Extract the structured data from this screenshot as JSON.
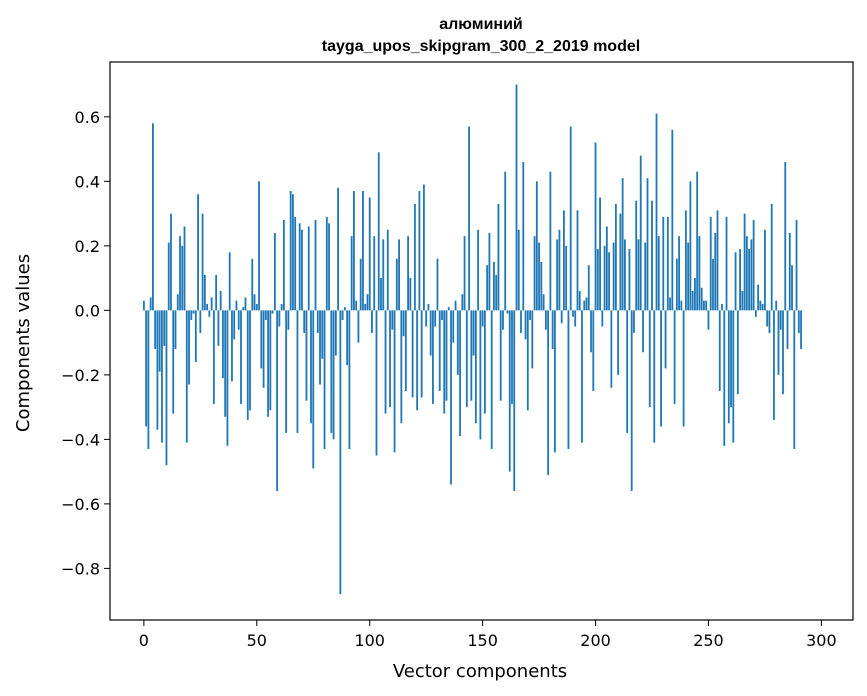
{
  "chart_data": {
    "type": "bar",
    "title": "алюминий",
    "subtitle": "tayga_upos_skipgram_300_2_2019 model",
    "xlabel": "Vector components",
    "ylabel": "Components values",
    "xlim": [
      -15,
      314
    ],
    "ylim": [
      -0.96,
      0.77
    ],
    "x_ticks": [
      0,
      50,
      100,
      150,
      200,
      250,
      300
    ],
    "x_tick_labels": [
      "0",
      "50",
      "100",
      "150",
      "200",
      "250",
      "300"
    ],
    "y_ticks": [
      -0.8,
      -0.6,
      -0.4,
      -0.2,
      0.0,
      0.2,
      0.4,
      0.6
    ],
    "y_tick_labels": [
      "−0.8",
      "−0.6",
      "−0.4",
      "−0.2",
      "0.0",
      "0.2",
      "0.4",
      "0.6"
    ],
    "grid": false,
    "bar_color": "#1f77b4",
    "values": [
      0.03,
      -0.36,
      -0.43,
      0.04,
      0.58,
      -0.12,
      -0.37,
      -0.19,
      -0.41,
      -0.11,
      -0.48,
      0.21,
      0.3,
      -0.32,
      -0.12,
      0.05,
      0.23,
      0.2,
      0.26,
      -0.41,
      -0.23,
      -0.03,
      -0.01,
      -0.16,
      0.36,
      -0.07,
      0.3,
      0.11,
      0.02,
      -0.02,
      0.04,
      -0.29,
      0.11,
      -0.11,
      0.06,
      -0.21,
      -0.33,
      -0.42,
      0.18,
      -0.22,
      -0.09,
      0.03,
      -0.06,
      -0.29,
      0.01,
      0.04,
      -0.34,
      -0.31,
      0.16,
      0.05,
      0.02,
      0.4,
      -0.18,
      -0.24,
      -0.03,
      -0.33,
      -0.31,
      -0.01,
      0.24,
      -0.56,
      -0.05,
      0.02,
      0.28,
      -0.38,
      -0.06,
      0.37,
      0.36,
      0.29,
      -0.38,
      0.27,
      0.25,
      -0.07,
      -0.28,
      0.26,
      -0.35,
      -0.49,
      0.28,
      -0.07,
      -0.23,
      -0.15,
      -0.43,
      0.29,
      0.27,
      -0.38,
      -0.4,
      -0.14,
      0.38,
      -0.88,
      -0.03,
      0.01,
      -0.17,
      -0.43,
      0.23,
      0.37,
      0.03,
      -0.1,
      0.16,
      0.37,
      0.02,
      0.05,
      0.35,
      -0.07,
      0.23,
      -0.45,
      0.49,
      0.1,
      0.22,
      -0.32,
      0.25,
      -0.3,
      -0.06,
      -0.44,
      0.16,
      0.22,
      -0.35,
      -0.08,
      -0.25,
      0.23,
      0.1,
      -0.27,
      0.33,
      -0.31,
      0.37,
      -0.27,
      0.39,
      -0.05,
      0.02,
      -0.14,
      -0.29,
      -0.05,
      0.16,
      -0.25,
      -0.03,
      -0.32,
      -0.28,
      0.01,
      -0.54,
      -0.1,
      0.03,
      -0.2,
      -0.39,
      0.05,
      0.23,
      -0.3,
      0.57,
      -0.28,
      -0.14,
      -0.35,
      0.25,
      -0.4,
      -0.05,
      -0.32,
      0.14,
      0.24,
      -0.43,
      0.15,
      0.11,
      0.33,
      -0.28,
      -0.06,
      0.43,
      -0.01,
      -0.5,
      -0.29,
      -0.56,
      0.7,
      0.25,
      -0.07,
      0.46,
      -0.09,
      -0.31,
      -0.03,
      -0.18,
      0.23,
      0.4,
      0.21,
      0.15,
      0.05,
      -0.06,
      -0.51,
      0.43,
      -0.12,
      -0.44,
      0.22,
      0.25,
      -0.04,
      0.31,
      0.2,
      -0.43,
      0.57,
      -0.02,
      -0.05,
      0.31,
      0.06,
      -0.41,
      0.03,
      0.04,
      0.14,
      -0.13,
      -0.25,
      0.52,
      0.19,
      0.35,
      -0.05,
      0.2,
      0.26,
      0.18,
      -0.24,
      0.21,
      0.33,
      -0.2,
      0.3,
      0.41,
      0.22,
      -0.38,
      0.19,
      -0.56,
      -0.07,
      0.34,
      0.22,
      0.48,
      -0.13,
      0.21,
      0.41,
      -0.3,
      0.34,
      -0.41,
      0.61,
      0.23,
      -0.36,
      0.29,
      -0.18,
      0.29,
      0.04,
      0.56,
      -0.29,
      0.16,
      0.23,
      0.03,
      -0.36,
      0.31,
      0.21,
      0.4,
      0.06,
      0.1,
      0.43,
      0.23,
      0.07,
      0.03,
      0.03,
      -0.06,
      0.29,
      0.16,
      0.24,
      0.31,
      -0.25,
      0.02,
      -0.42,
      0.29,
      -0.35,
      -0.3,
      -0.41,
      0.18,
      -0.26,
      0.19,
      0.06,
      0.3,
      0.23,
      0.19,
      0.22,
      0.28,
      -0.02,
      0.08,
      0.03,
      0.02,
      0.25,
      -0.05,
      -0.07,
      0.33,
      -0.34,
      0.03,
      -0.2,
      -0.06,
      -0.26,
      0.46,
      -0.12,
      0.24,
      0.14,
      -0.43,
      0.28,
      -0.07,
      -0.12
    ]
  }
}
